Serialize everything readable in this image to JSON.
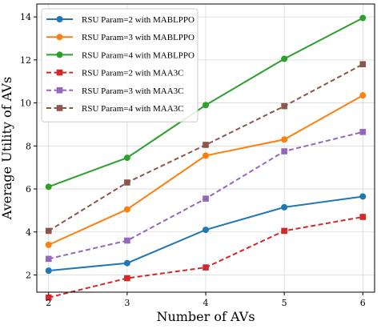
{
  "chart_data": {
    "type": "line",
    "xlabel": "Number of AVs",
    "ylabel": "Average Utility of AVs",
    "x": [
      2,
      3,
      4,
      5,
      6
    ],
    "xlim": [
      1.85,
      6.15
    ],
    "ylim": [
      1.2,
      14.6
    ],
    "xticks": [
      "2",
      "3",
      "4",
      "5",
      "6"
    ],
    "yticks": [
      "2",
      "4",
      "6",
      "8",
      "10",
      "12",
      "14"
    ],
    "grid": true,
    "legend_position": "top-left",
    "series": [
      {
        "name": "RSU Param=2 with MABLPPO",
        "values": [
          2.2,
          2.55,
          4.1,
          5.15,
          5.65
        ],
        "color": "#1f77b4",
        "dash": "solid",
        "marker": "circle"
      },
      {
        "name": "RSU Param=3 with MABLPPO",
        "values": [
          3.4,
          5.05,
          7.55,
          8.3,
          10.35
        ],
        "color": "#ff7f0e",
        "dash": "solid",
        "marker": "circle"
      },
      {
        "name": "RSU Param=4 with MABLPPO",
        "values": [
          6.1,
          7.45,
          9.9,
          12.05,
          13.95
        ],
        "color": "#2ca02c",
        "dash": "solid",
        "marker": "circle"
      },
      {
        "name": "RSU Param=2 with MAA3C",
        "values": [
          0.95,
          1.85,
          2.35,
          4.05,
          4.7
        ],
        "color": "#d62728",
        "dash": "dashed",
        "marker": "square"
      },
      {
        "name": "RSU Param=3 with MAA3C",
        "values": [
          2.75,
          3.6,
          5.55,
          7.75,
          8.65
        ],
        "color": "#9467bd",
        "dash": "dashed",
        "marker": "square"
      },
      {
        "name": "RSU Param=4 with MAA3C",
        "values": [
          4.05,
          6.3,
          8.05,
          9.85,
          11.8
        ],
        "color": "#8c564b",
        "dash": "dashed",
        "marker": "square"
      }
    ]
  }
}
